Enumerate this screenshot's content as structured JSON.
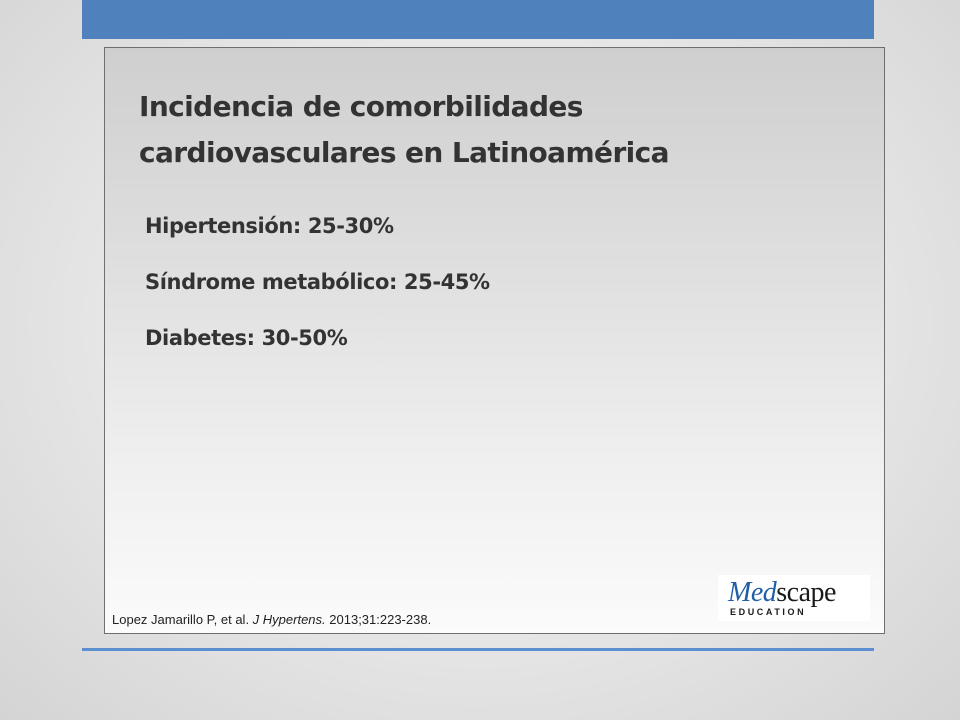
{
  "slide": {
    "title_line1": "Incidencia de comorbilidades",
    "title_line2": "cardiovasculares en Latinoamérica",
    "bullets": [
      "Hipertensión: 25-30%",
      "Síndrome metabólico: 25-45%",
      "Diabetes: 30-50%"
    ],
    "citation": {
      "authors": "Lopez Jamarillo P, et al. ",
      "journal": "J Hypertens.",
      "details": " 2013;31:223-238."
    },
    "logo": {
      "accent": "Med",
      "rest": "scape",
      "subtitle": "EDUCATION"
    }
  },
  "colors": {
    "accent_bar": "#4f81bd",
    "divider": "#5b8fd0",
    "text": "#333333",
    "logo_accent": "#1f5fa8"
  }
}
